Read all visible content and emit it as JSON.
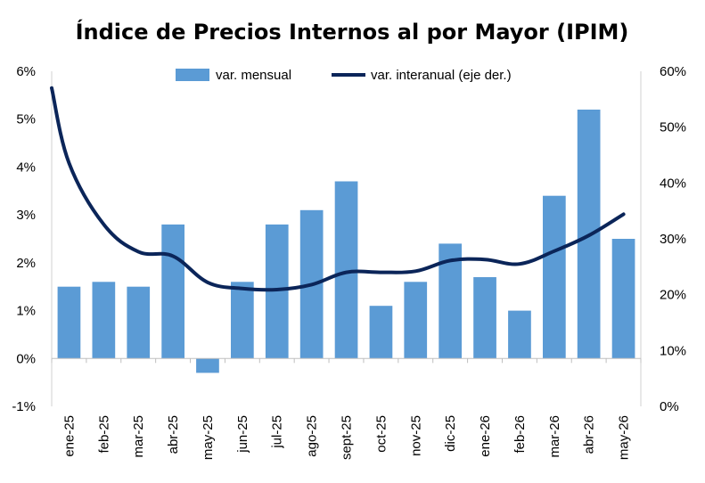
{
  "chart_data": {
    "type": "bar",
    "title": "Índice de Precios Internos al por Mayor (IPIM)",
    "categories": [
      "ene-25",
      "feb-25",
      "mar-25",
      "abr-25",
      "may-25",
      "jun-25",
      "jul-25",
      "ago-25",
      "sept-25",
      "oct-25",
      "nov-25",
      "dic-25",
      "ene-26",
      "feb-26",
      "mar-26",
      "abr-26",
      "may-26"
    ],
    "series": [
      {
        "name": "var. mensual",
        "type": "bar",
        "axis": "left",
        "color": "#5B9BD5",
        "values": [
          1.5,
          1.6,
          1.5,
          2.8,
          -0.3,
          1.6,
          2.8,
          3.1,
          3.7,
          1.1,
          1.6,
          2.4,
          1.7,
          1.0,
          3.4,
          5.2,
          2.5
        ]
      },
      {
        "name": "var. interanual (eje der.)",
        "type": "line",
        "axis": "right",
        "color": "#0B2559",
        "start_value": 57,
        "values": [
          43.6,
          32.6,
          27.7,
          26.9,
          22.2,
          21.1,
          20.9,
          21.8,
          24.0,
          24.0,
          24.2,
          26.1,
          26.3,
          25.5,
          27.8,
          30.6,
          34.4
        ]
      }
    ],
    "y_left": {
      "min": -1,
      "max": 6,
      "ticks": [
        -1,
        0,
        1,
        2,
        3,
        4,
        5,
        6
      ],
      "unit": "%"
    },
    "y_right": {
      "min": 0,
      "max": 60,
      "ticks": [
        0,
        10,
        20,
        30,
        40,
        50,
        60
      ],
      "unit": "%"
    },
    "grid": false,
    "legend": "top"
  }
}
